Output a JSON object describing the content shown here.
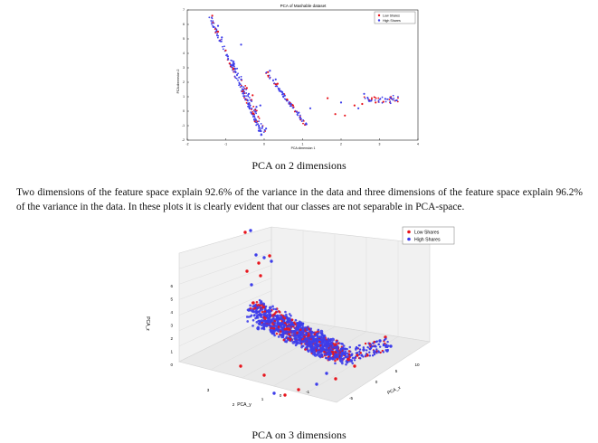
{
  "figure1": {
    "chart_data": {
      "type": "scatter",
      "title": "PCA of Mashable dataset",
      "xlabel": "PCA dimension 1",
      "ylabel": "PCA dimension 2",
      "xlim": [
        -2,
        4
      ],
      "ylim": [
        -2,
        7
      ],
      "xticks": [
        "-2",
        "-1",
        "0",
        "1",
        "2",
        "3",
        "4"
      ],
      "yticks": [
        "-2",
        "-1",
        "0",
        "1",
        "2",
        "3",
        "4",
        "5",
        "6",
        "7"
      ],
      "legend_position": "top-right",
      "grid": false,
      "series": [
        {
          "name": "Low Shares",
          "color": "#e8141c",
          "points": [
            [
              -1.35,
              6.6
            ],
            [
              -1.2,
              5.5
            ],
            [
              -1.0,
              4.2
            ],
            [
              -0.9,
              3.3
            ],
            [
              -0.8,
              2.9
            ],
            [
              -0.45,
              1.6
            ],
            [
              -0.3,
              1.1
            ],
            [
              0.1,
              2.7
            ],
            [
              0.35,
              1.9
            ],
            [
              0.6,
              0.8
            ],
            [
              0.75,
              0.4
            ],
            [
              1.65,
              0.9
            ],
            [
              1.85,
              -0.2
            ],
            [
              2.1,
              -0.3
            ],
            [
              2.35,
              0.4
            ],
            [
              2.55,
              0.5
            ],
            [
              2.9,
              0.6
            ],
            [
              3.1,
              0.65
            ]
          ]
        },
        {
          "name": "High Shares",
          "color": "#3d3dea",
          "points": [
            [
              -1.2,
              5.9
            ],
            [
              -1.1,
              5.1
            ],
            [
              -0.95,
              3.8
            ],
            [
              -0.8,
              3.2
            ],
            [
              -0.6,
              2.2
            ],
            [
              -0.4,
              1.2
            ],
            [
              -0.2,
              0.3
            ],
            [
              0.05,
              -1.2
            ],
            [
              0.15,
              2.8
            ],
            [
              0.3,
              2.2
            ],
            [
              0.5,
              1.2
            ],
            [
              0.7,
              0.5
            ],
            [
              0.9,
              -0.1
            ],
            [
              1.1,
              -0.9
            ],
            [
              -0.6,
              4.6
            ],
            [
              -0.1,
              0.4
            ],
            [
              1.2,
              0.2
            ],
            [
              2.0,
              0.6
            ],
            [
              2.45,
              0.2
            ],
            [
              2.75,
              0.7
            ],
            [
              3.15,
              0.85
            ],
            [
              3.3,
              0.9
            ],
            [
              3.45,
              0.75
            ],
            [
              2.6,
              1.2
            ]
          ]
        }
      ]
    },
    "caption": "PCA on 2 dimensions"
  },
  "paragraph": "Two dimensions of the feature space explain 92.6% of the variance in the data and three dimensions of the feature space explain 96.2% of the variance in the data. In these plots it is clearly evident that our classes are not separable in PCA-space.",
  "figure2": {
    "chart_data": {
      "type": "scatter",
      "title": "",
      "xlabel": "PCA_x",
      "ylabel": "PCA_y",
      "zlabel": "PCA_z",
      "x_ticks": [
        "-5",
        "0",
        "5",
        "10"
      ],
      "y_ticks": [
        "-1",
        "0",
        "1",
        "2",
        "3"
      ],
      "z_ticks": [
        "0",
        "1",
        "2",
        "3",
        "4",
        "5",
        "6"
      ],
      "legend_position": "top-right",
      "grid": true,
      "series": [
        {
          "name": "Low Shares",
          "color": "#e8141c"
        },
        {
          "name": "High Shares",
          "color": "#3d3dea"
        }
      ]
    },
    "caption": "PCA on 3 dimensions"
  }
}
